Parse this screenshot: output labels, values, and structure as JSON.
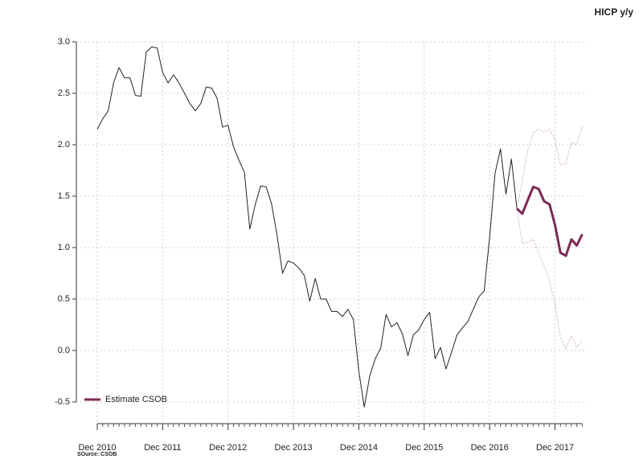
{
  "chart_data": {
    "type": "line",
    "title": "HICP y/y",
    "source": "SOurce: CSOB",
    "categories": [
      "Dec 2010",
      null,
      null,
      null,
      null,
      null,
      null,
      null,
      null,
      null,
      null,
      null,
      "Dec 2011",
      null,
      null,
      null,
      null,
      null,
      null,
      null,
      null,
      null,
      null,
      null,
      "Dec 2012",
      null,
      null,
      null,
      null,
      null,
      null,
      null,
      null,
      null,
      null,
      null,
      "Dec 2013",
      null,
      null,
      null,
      null,
      null,
      null,
      null,
      null,
      null,
      null,
      null,
      "Dec 2014",
      null,
      null,
      null,
      null,
      null,
      null,
      null,
      null,
      null,
      null,
      null,
      "Dec 2015",
      null,
      null,
      null,
      null,
      null,
      null,
      null,
      null,
      null,
      null,
      null,
      "Dec 2016",
      null,
      null,
      null,
      null,
      null,
      null,
      null,
      null,
      null,
      null,
      null,
      "Dec 2017",
      null,
      null,
      null,
      null,
      null
    ],
    "series": [
      {
        "color": "#222222",
        "width": 1,
        "linestyle": "solid",
        "values": [
          2.15,
          2.25,
          2.33,
          2.6,
          2.75,
          2.65,
          2.65,
          2.48,
          2.47,
          2.9,
          2.95,
          2.94,
          2.7,
          2.6,
          2.68,
          2.6,
          2.5,
          2.4,
          2.33,
          2.4,
          2.56,
          2.55,
          2.45,
          2.17,
          2.19,
          1.98,
          1.85,
          1.73,
          1.18,
          1.42,
          1.6,
          1.59,
          1.42,
          1.12,
          0.75,
          0.87,
          0.85,
          0.8,
          0.73,
          0.48,
          0.7,
          0.5,
          0.5,
          0.38,
          0.38,
          0.33,
          0.4,
          0.3,
          -0.2,
          -0.55,
          -0.25,
          -0.08,
          0.02,
          0.35,
          0.23,
          0.27,
          0.16,
          -0.05,
          0.15,
          0.2,
          0.3,
          0.37,
          -0.08,
          0.03,
          -0.18,
          -0.02,
          0.15,
          0.22,
          0.28,
          0.4,
          0.52,
          0.58,
          1.1,
          1.72,
          1.96,
          1.52,
          1.86,
          1.38,
          null,
          null,
          null,
          null,
          null,
          null,
          null,
          null,
          null,
          null,
          null,
          null
        ]
      },
      {
        "color": "#b57a98",
        "width": 1,
        "linestyle": "dotted",
        "values": [
          null,
          null,
          null,
          null,
          null,
          null,
          null,
          null,
          null,
          null,
          null,
          null,
          null,
          null,
          null,
          null,
          null,
          null,
          null,
          null,
          null,
          null,
          null,
          null,
          null,
          null,
          null,
          null,
          null,
          null,
          null,
          null,
          null,
          null,
          null,
          null,
          null,
          null,
          null,
          null,
          null,
          null,
          null,
          null,
          null,
          null,
          null,
          null,
          null,
          null,
          null,
          null,
          null,
          null,
          null,
          null,
          null,
          null,
          null,
          null,
          null,
          null,
          null,
          null,
          null,
          null,
          null,
          null,
          null,
          null,
          null,
          null,
          null,
          null,
          null,
          null,
          null,
          1.38,
          1.65,
          1.95,
          2.12,
          2.15,
          2.12,
          2.15,
          2.05,
          1.8,
          1.82,
          2.02,
          2.0,
          2.18
        ]
      },
      {
        "color": "#b57a98",
        "width": 1,
        "linestyle": "dotted",
        "values": [
          null,
          null,
          null,
          null,
          null,
          null,
          null,
          null,
          null,
          null,
          null,
          null,
          null,
          null,
          null,
          null,
          null,
          null,
          null,
          null,
          null,
          null,
          null,
          null,
          null,
          null,
          null,
          null,
          null,
          null,
          null,
          null,
          null,
          null,
          null,
          null,
          null,
          null,
          null,
          null,
          null,
          null,
          null,
          null,
          null,
          null,
          null,
          null,
          null,
          null,
          null,
          null,
          null,
          null,
          null,
          null,
          null,
          null,
          null,
          null,
          null,
          null,
          null,
          null,
          null,
          null,
          null,
          null,
          null,
          null,
          null,
          null,
          null,
          null,
          null,
          null,
          null,
          1.38,
          1.04,
          1.05,
          1.08,
          0.95,
          0.82,
          0.68,
          0.45,
          0.12,
          0.02,
          0.14,
          0.03,
          0.1
        ]
      },
      {
        "name": "Estimate CSOB",
        "color": "#7b2a55",
        "width": 3,
        "linestyle": "solid",
        "values": [
          null,
          null,
          null,
          null,
          null,
          null,
          null,
          null,
          null,
          null,
          null,
          null,
          null,
          null,
          null,
          null,
          null,
          null,
          null,
          null,
          null,
          null,
          null,
          null,
          null,
          null,
          null,
          null,
          null,
          null,
          null,
          null,
          null,
          null,
          null,
          null,
          null,
          null,
          null,
          null,
          null,
          null,
          null,
          null,
          null,
          null,
          null,
          null,
          null,
          null,
          null,
          null,
          null,
          null,
          null,
          null,
          null,
          null,
          null,
          null,
          null,
          null,
          null,
          null,
          null,
          null,
          null,
          null,
          null,
          null,
          null,
          null,
          null,
          null,
          null,
          null,
          null,
          1.38,
          1.33,
          1.46,
          1.59,
          1.57,
          1.45,
          1.42,
          1.22,
          0.95,
          0.92,
          1.08,
          1.02,
          1.13
        ]
      }
    ],
    "ylim": [
      -0.5,
      3
    ],
    "yticks": [
      -0.5,
      {
        "value": 0,
        "label": "0.0"
      },
      0.5,
      {
        "value": 1,
        "label": "1.0"
      },
      1.5,
      {
        "value": 2,
        "label": "2.0"
      },
      2.5,
      {
        "value": 3,
        "label": "3.0"
      }
    ],
    "grid": true,
    "legend": "bottom-left"
  }
}
